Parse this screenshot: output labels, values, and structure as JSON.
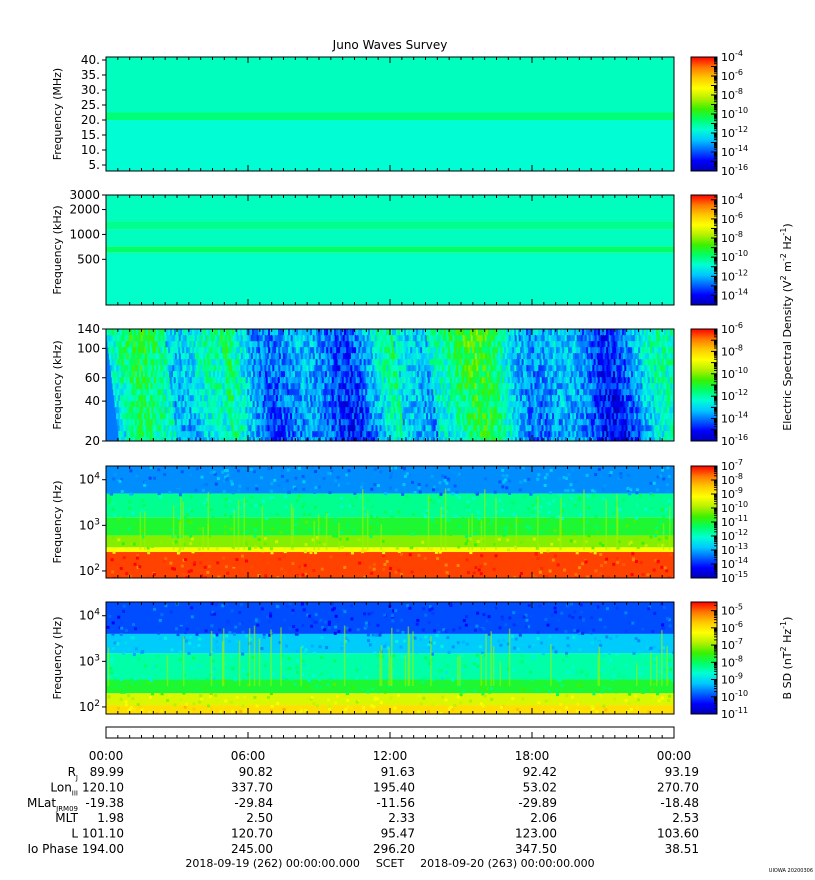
{
  "title": "Juno Waves Survey",
  "colors": {
    "colormap": [
      "#0000b4",
      "#0000ff",
      "#0064ff",
      "#00c8ff",
      "#00ffd2",
      "#00ff64",
      "#3cf000",
      "#b4f000",
      "#ffff00",
      "#ffc800",
      "#ff7800",
      "#ff0000"
    ],
    "axis": "#000000"
  },
  "chart_data": [
    {
      "type": "heatmap",
      "id": "p1",
      "ylabel": "Frequency (MHz)",
      "yscale": "linear",
      "ylim": [
        3,
        41
      ],
      "yticks": [
        {
          "v": 5,
          "label": "5."
        },
        {
          "v": 10,
          "label": "10."
        },
        {
          "v": 15,
          "label": "15."
        },
        {
          "v": 20,
          "label": "20."
        },
        {
          "v": 25,
          "label": "25."
        },
        {
          "v": 30,
          "label": "30."
        },
        {
          "v": 35,
          "label": "35."
        },
        {
          "v": 40,
          "label": "40."
        }
      ],
      "colorbar": {
        "min_exp": -16,
        "max_exp": -4,
        "labels": [
          -16,
          -14,
          -12,
          -10,
          -8,
          -6,
          -4
        ]
      },
      "bands": [
        {
          "lo": 3,
          "hi": 20,
          "level": 0.36
        },
        {
          "lo": 20,
          "hi": 22.5,
          "level": 0.44
        },
        {
          "lo": 22.5,
          "hi": 41,
          "level": 0.38
        }
      ]
    },
    {
      "type": "heatmap",
      "id": "p2",
      "ylabel": "Frequency (kHz)",
      "yscale": "log",
      "ylim": [
        140,
        3000
      ],
      "yticks": [
        {
          "v": 500,
          "label": "500"
        },
        {
          "v": 1000,
          "label": "1000"
        },
        {
          "v": 2000,
          "label": "2000"
        },
        {
          "v": 3000,
          "label": "3000"
        }
      ],
      "colorbar": {
        "min_exp": -15,
        "max_exp": -3.5,
        "labels": [
          -14,
          -12,
          -10,
          -8,
          -6,
          -4
        ]
      },
      "bands": [
        {
          "lo": 140,
          "hi": 600,
          "level": 0.37
        },
        {
          "lo": 600,
          "hi": 720,
          "level": 0.45
        },
        {
          "lo": 720,
          "hi": 1150,
          "level": 0.38
        },
        {
          "lo": 1150,
          "hi": 1450,
          "level": 0.42
        },
        {
          "lo": 1450,
          "hi": 3000,
          "level": 0.38
        }
      ]
    },
    {
      "type": "heatmap",
      "id": "p3",
      "ylabel": "Frequency (kHz)",
      "yscale": "log",
      "ylim": [
        20,
        140
      ],
      "yticks": [
        {
          "v": 20,
          "label": "20"
        },
        {
          "v": 40,
          "label": "40"
        },
        {
          "v": 60,
          "label": "60"
        },
        {
          "v": 100,
          "label": "100"
        },
        {
          "v": 140,
          "label": "140"
        }
      ],
      "colorbar": {
        "min_exp": -16,
        "max_exp": -6,
        "labels": [
          -16,
          -14,
          -12,
          -10,
          -8,
          -6
        ]
      },
      "texture": "streaks"
    },
    {
      "type": "heatmap",
      "id": "p4",
      "ylabel": "Frequency (Hz)",
      "yscale": "log",
      "ylim": [
        70,
        20000
      ],
      "yticks": [
        {
          "v": 100,
          "label": "10",
          "sup": "2"
        },
        {
          "v": 1000,
          "label": "10",
          "sup": "3"
        },
        {
          "v": 10000,
          "label": "10",
          "sup": "4"
        }
      ],
      "colorbar": {
        "min_exp": -15,
        "max_exp": -7,
        "labels": [
          -15,
          -14,
          -13,
          -12,
          -11,
          -10,
          -9,
          -8,
          -7
        ]
      },
      "bands": [
        {
          "lo": 70,
          "hi": 260,
          "level": 0.95
        },
        {
          "lo": 260,
          "hi": 330,
          "level": 0.72
        },
        {
          "lo": 330,
          "hi": 600,
          "level": 0.6
        },
        {
          "lo": 600,
          "hi": 1500,
          "level": 0.5
        },
        {
          "lo": 1500,
          "hi": 5000,
          "level": 0.42
        },
        {
          "lo": 5000,
          "hi": 20000,
          "level": 0.22
        }
      ]
    },
    {
      "type": "heatmap",
      "id": "p5",
      "ylabel": "Frequency (Hz)",
      "yscale": "log",
      "ylim": [
        70,
        20000
      ],
      "yticks": [
        {
          "v": 100,
          "label": "10",
          "sup": "2"
        },
        {
          "v": 1000,
          "label": "10",
          "sup": "3"
        },
        {
          "v": 10000,
          "label": "10",
          "sup": "4"
        }
      ],
      "colorbar": {
        "min_exp": -11,
        "max_exp": -4.5,
        "labels": [
          -11,
          -10,
          -9,
          -8,
          -7,
          -6,
          -5
        ]
      },
      "bands": [
        {
          "lo": 70,
          "hi": 110,
          "level": 0.78
        },
        {
          "lo": 110,
          "hi": 200,
          "level": 0.68
        },
        {
          "lo": 200,
          "hi": 400,
          "level": 0.5
        },
        {
          "lo": 400,
          "hi": 1500,
          "level": 0.4
        },
        {
          "lo": 1500,
          "hi": 4000,
          "level": 0.28
        },
        {
          "lo": 4000,
          "hi": 20000,
          "level": 0.16
        }
      ]
    }
  ],
  "colorbar_titles": {
    "electric": "Electric Spectral Density (V² m⁻² Hz⁻¹)",
    "magnetic": "B SD (nT² Hz⁻¹)",
    "electric_parts": {
      "pre": "Electric Spectral Density (V",
      "a": "2",
      "mid1": " m",
      "b": "-2",
      "mid2": " Hz",
      "c": "-1",
      "post": ")"
    },
    "magnetic_parts": {
      "pre": "B SD (nT",
      "a": "2",
      "mid": " Hz",
      "b": "-1",
      "post": ")"
    }
  },
  "ephemeris": {
    "times": [
      "00:00",
      "06:00",
      "12:00",
      "18:00",
      "00:00"
    ],
    "rows": [
      {
        "label": "R",
        "sub": "J",
        "values": [
          "89.99",
          "90.82",
          "91.63",
          "92.42",
          "93.19"
        ]
      },
      {
        "label": "Lon",
        "sub": "III",
        "values": [
          "120.10",
          "337.70",
          "195.40",
          "53.02",
          "270.70"
        ]
      },
      {
        "label": "MLat",
        "sub": "JRM09",
        "values": [
          "-19.38",
          "-29.84",
          "-11.56",
          "-29.89",
          "-18.48"
        ]
      },
      {
        "label": "MLT",
        "sub": "",
        "values": [
          "1.98",
          "2.50",
          "2.33",
          "2.06",
          "2.53"
        ]
      },
      {
        "label": "L",
        "sub": "",
        "values": [
          "101.10",
          "120.70",
          "95.47",
          "123.00",
          "103.60"
        ]
      },
      {
        "label": "Io Phase",
        "sub": "",
        "values": [
          "194.00",
          "245.00",
          "296.20",
          "347.50",
          "38.51"
        ]
      }
    ],
    "footer": {
      "start": "2018-09-19 (262) 00:00:00.000",
      "scet": "SCET",
      "end": "2018-09-20 (263) 00:00:00.000"
    }
  },
  "version_tag": "UIOWA 20200306"
}
